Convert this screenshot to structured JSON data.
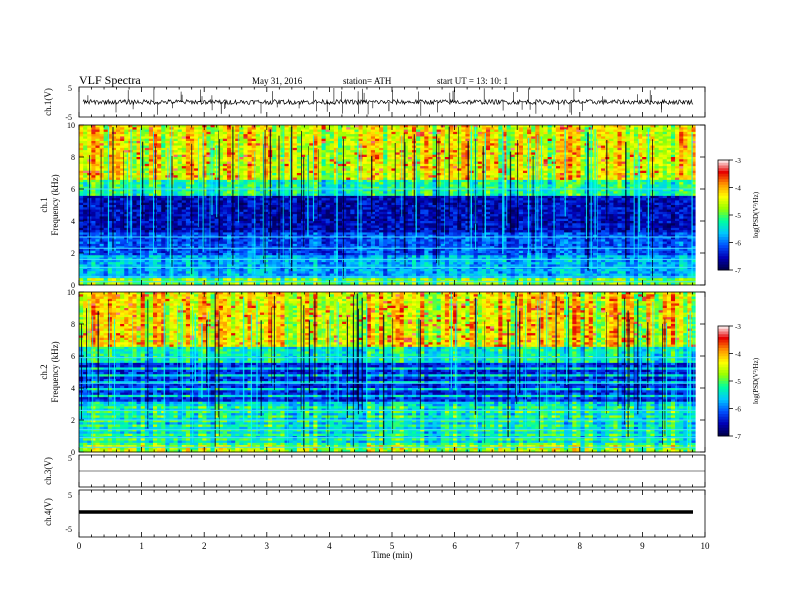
{
  "header": {
    "title": "VLF Spectra",
    "date": "May 31, 2016",
    "station": "station= ATH",
    "start": "start  UT =    13: 10: 1"
  },
  "colors": {
    "background": "#ffffff",
    "trace": "#000000",
    "colormap": [
      "#000046",
      "#0000b4",
      "#0050ff",
      "#00c8ff",
      "#00ffa0",
      "#96ff00",
      "#ffff00",
      "#ff9600",
      "#e60000",
      "#ffffff"
    ]
  },
  "chart_data": {
    "type": "heatmap",
    "title": "VLF Spectra",
    "xlabel": "Time  (min)",
    "xlim": [
      0,
      10
    ],
    "xticks": [
      "0",
      "1",
      "2",
      "3",
      "4",
      "5",
      "6",
      "7",
      "8",
      "9",
      "10"
    ],
    "panels": [
      {
        "id": "ch1-voltage",
        "type": "line",
        "ylabel": "ch.1(V)",
        "ylim": [
          -5,
          5
        ],
        "yticks": [
          "5",
          "-5"
        ],
        "description_level": 0,
        "noise_amplitude": 0.4,
        "spike_count": 60
      },
      {
        "id": "ch1-spectrogram",
        "type": "heatmap",
        "ylabel_channel": "ch.1",
        "ylabel": "Frequency  (kHz)",
        "ylim": [
          0,
          10
        ],
        "yticks": [
          "0",
          "2",
          "4",
          "6",
          "8",
          "10"
        ],
        "time_extent_min": 9.85,
        "z_label": "log(PSD(V²/Hz)",
        "zlim": [
          -7,
          -3
        ],
        "zticks": [
          "-3",
          "-4",
          "-5",
          "-6",
          "-7"
        ]
      },
      {
        "id": "ch2-spectrogram",
        "type": "heatmap",
        "ylabel_channel": "ch.2",
        "ylabel": "Frequency  (kHz)",
        "ylim": [
          0,
          10
        ],
        "yticks": [
          "0",
          "2",
          "4",
          "6",
          "8",
          "10"
        ],
        "time_extent_min": 9.85,
        "z_label": "log(PSD(V²/Hz)",
        "zlim": [
          -7,
          -3
        ],
        "zticks": [
          "-3",
          "-4",
          "-5",
          "-6",
          "-7"
        ]
      },
      {
        "id": "ch3-voltage",
        "type": "line",
        "ylabel": "ch.3(V)",
        "ylim": [
          -5,
          5
        ],
        "yticks": [
          "5"
        ],
        "description_level": 0,
        "noise_amplitude": 0.02
      },
      {
        "id": "ch4-voltage",
        "type": "line",
        "ylabel": "ch.4(V)",
        "ylim": [
          -5,
          5
        ],
        "yticks": [
          "5",
          "-5"
        ],
        "description_level": 0,
        "noise_amplitude": 0.15
      }
    ]
  }
}
